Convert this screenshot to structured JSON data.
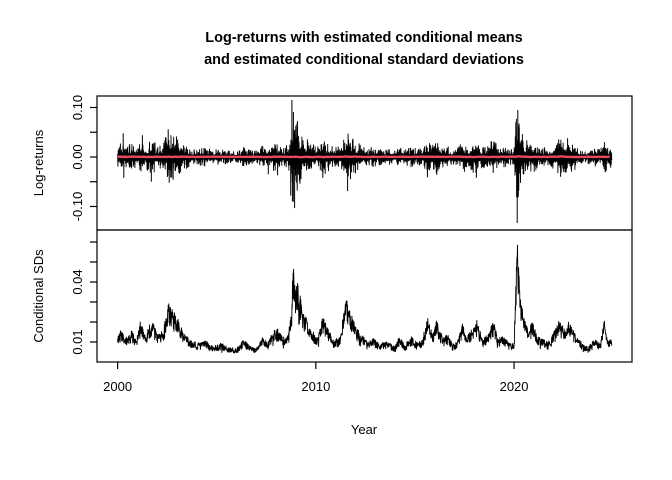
{
  "figure": {
    "title_line1": "Log-returns with estimated conditional means",
    "title_line2": "and estimated conditional standard deviations",
    "background": "#ffffff",
    "axis_color": "#000000",
    "text_color": "#000000"
  },
  "chart_data": {
    "type": "line",
    "title": "Log-returns with estimated conditional means and estimated conditional standard deviations",
    "xlabel": "Year",
    "grid": false,
    "legend": "none",
    "x_data_range": [
      2000.0,
      2024.92
    ],
    "xlim": [
      1998.96,
      2025.95
    ],
    "xticks": [
      {
        "value": 2000,
        "label": "2000"
      },
      {
        "value": 2010,
        "label": "2010"
      },
      {
        "value": 2020,
        "label": "2020"
      }
    ],
    "panels": [
      {
        "ylabel": "Log-returns",
        "ylim": [
          -0.1475,
          0.1232
        ],
        "yticks": [
          {
            "value": 0.1,
            "label": "0.10"
          },
          {
            "value": 0.05,
            "label": ""
          },
          {
            "value": 0.0,
            "label": "0.00"
          },
          {
            "value": -0.05,
            "label": ""
          },
          {
            "value": -0.1,
            "label": "-0.10"
          }
        ],
        "series": [
          {
            "name": "log-returns",
            "color": "#000000",
            "kind": "returns"
          },
          {
            "name": "estimated-conditional-means",
            "color": "#e8495f",
            "kind": "mean",
            "base_value": 0.0004,
            "wiggle_scale": 0.06
          }
        ],
        "extreme_returns": [
          [
            2000.28,
            0.048
          ],
          [
            2000.31,
            -0.042
          ],
          [
            2001.25,
            0.044
          ],
          [
            2001.7,
            -0.05
          ],
          [
            2002.55,
            0.056
          ],
          [
            2002.6,
            -0.052
          ],
          [
            2002.8,
            -0.046
          ],
          [
            2007.6,
            -0.035
          ],
          [
            2008.07,
            -0.037
          ],
          [
            2008.73,
            -0.078
          ],
          [
            2008.79,
            0.1152
          ],
          [
            2008.82,
            -0.09
          ],
          [
            2008.87,
            0.091
          ],
          [
            2008.93,
            -0.1033
          ],
          [
            2009.05,
            0.068
          ],
          [
            2009.2,
            -0.054
          ],
          [
            2010.35,
            -0.042
          ],
          [
            2011.6,
            -0.069
          ],
          [
            2011.63,
            0.047
          ],
          [
            2011.75,
            -0.045
          ],
          [
            2015.63,
            -0.041
          ],
          [
            2016.1,
            -0.036
          ],
          [
            2018.1,
            -0.042
          ],
          [
            2018.95,
            -0.032
          ],
          [
            2020.16,
            -0.1333
          ],
          [
            2020.19,
            0.095
          ],
          [
            2020.22,
            -0.066
          ],
          [
            2020.26,
            0.06
          ],
          [
            2022.35,
            -0.04
          ],
          [
            2022.7,
            0.038
          ],
          [
            2024.6,
            -0.031
          ]
        ]
      },
      {
        "ylabel": "Conditional SDs",
        "ylim": [
          0.0,
          0.066
        ],
        "yticks": [
          {
            "value": 0.06,
            "label": ""
          },
          {
            "value": 0.05,
            "label": ""
          },
          {
            "value": 0.04,
            "label": "0.04"
          },
          {
            "value": 0.03,
            "label": ""
          },
          {
            "value": 0.02,
            "label": ""
          },
          {
            "value": 0.01,
            "label": "0.01"
          }
        ],
        "series": [
          {
            "name": "estimated-conditional-sds",
            "color": "#000000",
            "kind": "sd"
          }
        ]
      }
    ],
    "sd_control_points": [
      [
        2000.0,
        0.013
      ],
      [
        2000.15,
        0.017
      ],
      [
        2000.4,
        0.0125
      ],
      [
        2000.7,
        0.016
      ],
      [
        2000.95,
        0.011
      ],
      [
        2001.15,
        0.021
      ],
      [
        2001.4,
        0.013
      ],
      [
        2001.72,
        0.022
      ],
      [
        2002.0,
        0.014
      ],
      [
        2002.3,
        0.016
      ],
      [
        2002.55,
        0.03
      ],
      [
        2002.8,
        0.026
      ],
      [
        2003.05,
        0.022
      ],
      [
        2003.3,
        0.015
      ],
      [
        2003.7,
        0.011
      ],
      [
        2004.0,
        0.0095
      ],
      [
        2004.4,
        0.011
      ],
      [
        2004.8,
        0.008
      ],
      [
        2005.2,
        0.0095
      ],
      [
        2005.6,
        0.0075
      ],
      [
        2006.0,
        0.007
      ],
      [
        2006.35,
        0.0115
      ],
      [
        2006.7,
        0.008
      ],
      [
        2007.0,
        0.0068
      ],
      [
        2007.3,
        0.013
      ],
      [
        2007.55,
        0.01
      ],
      [
        2007.85,
        0.016
      ],
      [
        2008.1,
        0.017
      ],
      [
        2008.35,
        0.013
      ],
      [
        2008.6,
        0.014
      ],
      [
        2008.75,
        0.024
      ],
      [
        2008.85,
        0.052
      ],
      [
        2008.95,
        0.038
      ],
      [
        2009.05,
        0.043
      ],
      [
        2009.3,
        0.028
      ],
      [
        2009.6,
        0.02
      ],
      [
        2009.9,
        0.015
      ],
      [
        2010.1,
        0.012
      ],
      [
        2010.35,
        0.023
      ],
      [
        2010.6,
        0.017
      ],
      [
        2010.9,
        0.011
      ],
      [
        2011.2,
        0.013
      ],
      [
        2011.55,
        0.0325
      ],
      [
        2011.8,
        0.024
      ],
      [
        2012.05,
        0.017
      ],
      [
        2012.3,
        0.015
      ],
      [
        2012.6,
        0.01
      ],
      [
        2012.9,
        0.012
      ],
      [
        2013.2,
        0.0095
      ],
      [
        2013.6,
        0.01
      ],
      [
        2014.0,
        0.008
      ],
      [
        2014.2,
        0.013
      ],
      [
        2014.5,
        0.009
      ],
      [
        2014.8,
        0.013
      ],
      [
        2015.1,
        0.01
      ],
      [
        2015.35,
        0.011
      ],
      [
        2015.63,
        0.0225
      ],
      [
        2015.9,
        0.014
      ],
      [
        2016.1,
        0.021
      ],
      [
        2016.4,
        0.012
      ],
      [
        2016.65,
        0.014
      ],
      [
        2016.9,
        0.009
      ],
      [
        2017.15,
        0.0105
      ],
      [
        2017.4,
        0.02
      ],
      [
        2017.6,
        0.012
      ],
      [
        2017.9,
        0.018
      ],
      [
        2018.12,
        0.021
      ],
      [
        2018.4,
        0.012
      ],
      [
        2018.7,
        0.014
      ],
      [
        2018.95,
        0.021
      ],
      [
        2019.2,
        0.012
      ],
      [
        2019.5,
        0.013
      ],
      [
        2019.8,
        0.009
      ],
      [
        2020.0,
        0.01
      ],
      [
        2020.16,
        0.0638
      ],
      [
        2020.3,
        0.034
      ],
      [
        2020.5,
        0.022
      ],
      [
        2020.75,
        0.017
      ],
      [
        2020.95,
        0.021
      ],
      [
        2021.15,
        0.013
      ],
      [
        2021.45,
        0.012
      ],
      [
        2021.7,
        0.01
      ],
      [
        2022.0,
        0.015
      ],
      [
        2022.25,
        0.021
      ],
      [
        2022.5,
        0.018
      ],
      [
        2022.75,
        0.021
      ],
      [
        2022.95,
        0.017
      ],
      [
        2023.2,
        0.012
      ],
      [
        2023.5,
        0.009
      ],
      [
        2023.8,
        0.0085
      ],
      [
        2024.1,
        0.012
      ],
      [
        2024.35,
        0.009
      ],
      [
        2024.55,
        0.021
      ],
      [
        2024.75,
        0.011
      ],
      [
        2024.92,
        0.013
      ]
    ],
    "returns_envelope_multiplier": 2.0,
    "noise_seed": 987654321
  }
}
